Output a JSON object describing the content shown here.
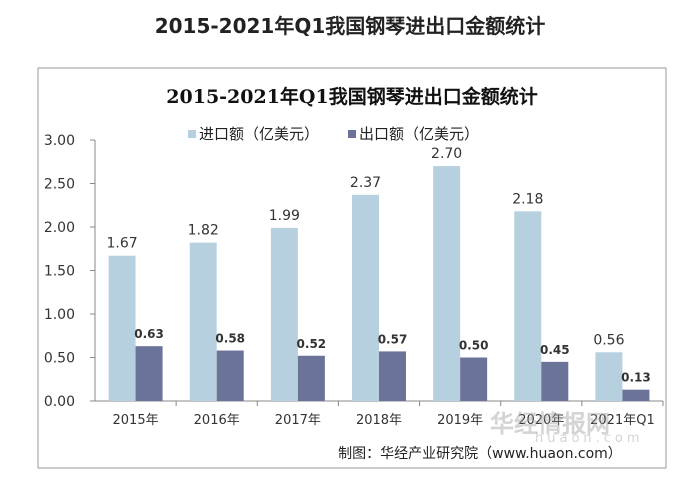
{
  "page_title": "2015-2021年Q1我国钢琴进出口金额统计",
  "chart_data": {
    "type": "bar",
    "title": "2015-2021年Q1我国钢琴进出口金额统计",
    "categories": [
      "2015年",
      "2016年",
      "2017年",
      "2018年",
      "2019年",
      "2020年",
      "2021年Q1"
    ],
    "series": [
      {
        "name": "进口额（亿美元）",
        "values": [
          1.67,
          1.82,
          1.99,
          2.37,
          2.7,
          2.18,
          0.56
        ],
        "color": "#b7d0e0"
      },
      {
        "name": "出口额（亿美元）",
        "values": [
          0.63,
          0.58,
          0.52,
          0.57,
          0.5,
          0.45,
          0.13
        ],
        "color": "#6b7399"
      }
    ],
    "yticks": [
      "0.00",
      "0.50",
      "1.00",
      "1.50",
      "2.00",
      "2.50",
      "3.00"
    ],
    "ylim": [
      0,
      3
    ],
    "legend": "top",
    "grid": false,
    "source": "制图：华经产业研究院（www.huaon.com）"
  },
  "watermark": {
    "logo_text": "华经情报网",
    "url_text": "huaon.com"
  }
}
